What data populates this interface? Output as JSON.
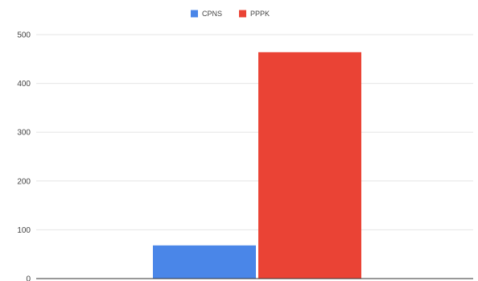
{
  "chart_data": {
    "type": "bar",
    "categories": [
      ""
    ],
    "series": [
      {
        "name": "CPNS",
        "values": [
          68
        ],
        "color": "#4a86e8"
      },
      {
        "name": "PPPK",
        "values": [
          464
        ],
        "color": "#ea4335"
      }
    ],
    "ylim": [
      0,
      500
    ],
    "yticks": [
      "0",
      "100",
      "200",
      "300",
      "400",
      "500"
    ],
    "grid": true,
    "legend_position": "top"
  }
}
